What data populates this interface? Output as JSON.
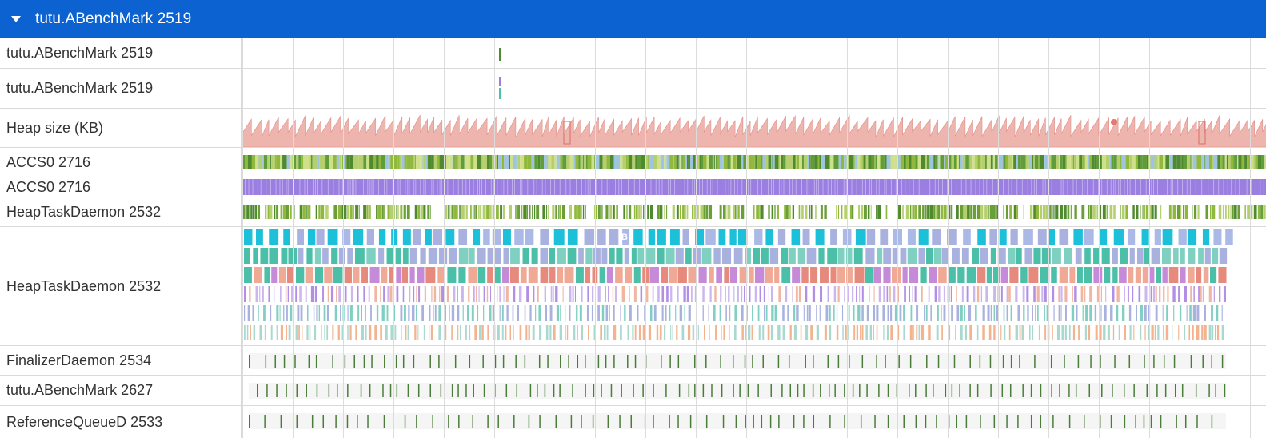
{
  "header": {
    "title": "tutu.ABenchMark 2519",
    "caret_icon": "caret-down-icon",
    "color": "#0b62d0"
  },
  "tracks": [
    {
      "id": "main-thread",
      "label": "tutu.ABenchMark 2519",
      "kind": "marker-single"
    },
    {
      "id": "main-thread-2",
      "label": "tutu.ABenchMark 2519",
      "kind": "marker-double"
    },
    {
      "id": "heap-size",
      "label": "Heap size (KB)",
      "kind": "counter"
    },
    {
      "id": "accs0-state",
      "label": "ACCS0 2716",
      "kind": "state-dense-green"
    },
    {
      "id": "accs0-slices",
      "label": "ACCS0 2716",
      "kind": "state-purple"
    },
    {
      "id": "heaptask-state",
      "label": "HeapTaskDaemon 2532",
      "kind": "state-sparse-green"
    },
    {
      "id": "heaptask-slices",
      "label": "HeapTaskDaemon 2532",
      "kind": "slices-multi",
      "slice_label": "B"
    },
    {
      "id": "finalizer",
      "label": "FinalizerDaemon 2534",
      "kind": "ticks"
    },
    {
      "id": "tutu-2627",
      "label": "tutu.ABenchMark 2627",
      "kind": "ticks"
    },
    {
      "id": "refqueue",
      "label": "ReferenceQueueD 2533",
      "kind": "ticks"
    }
  ],
  "colors": {
    "heap": "#eeb4ae",
    "heap_stroke": "#e08f88",
    "purple": "#9b7fe0",
    "green_a": "#8fb83c",
    "green_b": "#4f8a2f",
    "cyan": "#1cc0d8",
    "lavender": "#a9b2df",
    "teal": "#4bbfa8",
    "salmon": "#e58a7c",
    "tick": "#4b7d3a",
    "grid": "#dcdcdc"
  }
}
